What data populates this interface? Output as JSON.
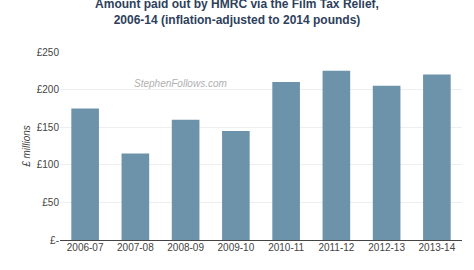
{
  "chart_data": {
    "type": "bar",
    "title": "Amount paid out by HMRC via the Film Tax Relief,",
    "subtitle": "2006-14 (inflation-adjusted to 2014 pounds)",
    "categories": [
      "2006-07",
      "2007-08",
      "2008-09",
      "2009-10",
      "2010-11",
      "2011-12",
      "2012-13",
      "2013-14"
    ],
    "values": [
      175,
      115,
      160,
      145,
      210,
      225,
      205,
      220
    ],
    "color": "#6d93aa",
    "ylabel": "£ millions",
    "ylim": [
      0,
      250
    ],
    "yticks": [
      {
        "value": 0,
        "label": "£-"
      },
      {
        "value": 50,
        "label": "£50"
      },
      {
        "value": 100,
        "label": "£100"
      },
      {
        "value": 150,
        "label": "£150"
      },
      {
        "value": 200,
        "label": "£200"
      },
      {
        "value": 250,
        "label": "£250"
      }
    ],
    "grid": true,
    "annotations": [
      "StephenFollows.com"
    ]
  }
}
